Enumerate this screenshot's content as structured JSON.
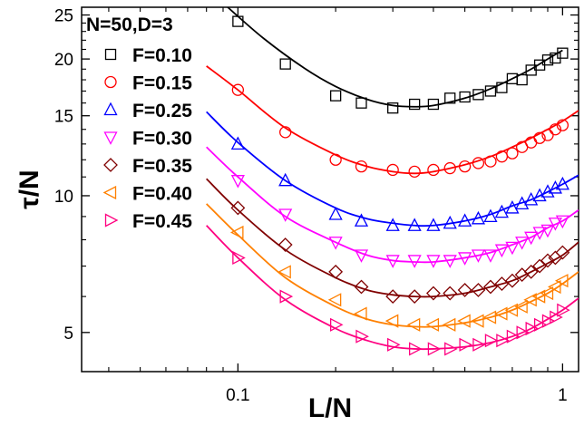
{
  "chart_data": {
    "type": "scatter",
    "title": "N=50,D=3",
    "xlabel": "L/N",
    "ylabel": "τ/N",
    "x_scale": "log",
    "y_scale": "log",
    "xlim": [
      0.033,
      1.12
    ],
    "ylim": [
      4.1,
      26.0
    ],
    "x_ticks": [
      0.1,
      1
    ],
    "x_tick_labels": [
      "0.1",
      "1"
    ],
    "y_ticks": [
      5,
      10,
      15,
      20,
      25
    ],
    "y_tick_labels": [
      "5",
      "10",
      "15",
      "20",
      "25"
    ],
    "legend_position": "top-left",
    "grid": false,
    "series": [
      {
        "name": "F=0.10",
        "marker": "square",
        "color": "#000000",
        "x": [
          0.1,
          0.14,
          0.2,
          0.24,
          0.3,
          0.35,
          0.4,
          0.45,
          0.5,
          0.55,
          0.6,
          0.65,
          0.7,
          0.75,
          0.8,
          0.85,
          0.9,
          0.95,
          1.0
        ],
        "y": [
          24.2,
          19.5,
          16.6,
          16.0,
          15.6,
          15.9,
          15.9,
          16.4,
          16.5,
          16.7,
          17.0,
          17.3,
          18.1,
          18.0,
          18.9,
          19.4,
          19.9,
          20.1,
          20.6
        ],
        "fit_x": [
          0.093,
          0.12,
          0.16,
          0.2,
          0.25,
          0.3,
          0.35,
          0.4,
          0.5,
          0.6,
          0.7,
          0.8,
          0.9,
          1.0
        ],
        "fit_y": [
          26.0,
          22.2,
          19.1,
          17.4,
          16.3,
          15.8,
          15.7,
          15.8,
          16.4,
          17.2,
          18.1,
          19.0,
          20.0,
          20.9
        ]
      },
      {
        "name": "F=0.15",
        "marker": "circle",
        "color": "#ff0000",
        "x": [
          0.1,
          0.14,
          0.2,
          0.24,
          0.3,
          0.35,
          0.4,
          0.45,
          0.5,
          0.55,
          0.6,
          0.65,
          0.7,
          0.75,
          0.8,
          0.85,
          0.9,
          0.95,
          1.0
        ],
        "y": [
          17.1,
          13.8,
          12.0,
          11.6,
          11.4,
          11.3,
          11.4,
          11.5,
          11.6,
          11.8,
          11.9,
          12.2,
          12.4,
          12.8,
          13.1,
          13.4,
          13.6,
          14.0,
          14.3
        ],
        "fit_x": [
          0.08,
          0.1,
          0.14,
          0.2,
          0.25,
          0.3,
          0.35,
          0.4,
          0.5,
          0.6,
          0.7,
          0.8,
          0.9,
          1.0,
          1.12
        ],
        "fit_y": [
          19.3,
          17.1,
          14.1,
          12.3,
          11.6,
          11.3,
          11.2,
          11.3,
          11.7,
          12.2,
          12.8,
          13.4,
          14.0,
          14.6,
          15.4
        ]
      },
      {
        "name": "F=0.25",
        "marker": "triangle-up",
        "color": "#0000ff",
        "x": [
          0.1,
          0.14,
          0.2,
          0.24,
          0.3,
          0.35,
          0.4,
          0.45,
          0.5,
          0.55,
          0.6,
          0.65,
          0.7,
          0.75,
          0.8,
          0.85,
          0.9,
          0.95,
          1.0
        ],
        "y": [
          13.0,
          10.8,
          9.1,
          8.8,
          8.6,
          8.6,
          8.6,
          8.7,
          8.8,
          8.9,
          9.0,
          9.2,
          9.4,
          9.6,
          9.8,
          10.0,
          10.2,
          10.4,
          10.6
        ],
        "fit_x": [
          0.08,
          0.1,
          0.14,
          0.2,
          0.25,
          0.3,
          0.35,
          0.4,
          0.5,
          0.6,
          0.7,
          0.8,
          0.9,
          1.0,
          1.12
        ],
        "fit_y": [
          15.3,
          13.1,
          10.8,
          9.4,
          8.9,
          8.7,
          8.6,
          8.6,
          8.8,
          9.1,
          9.5,
          9.8,
          10.2,
          10.6,
          11.1
        ]
      },
      {
        "name": "F=0.30",
        "marker": "triangle-down",
        "color": "#ff00ff",
        "x": [
          0.1,
          0.14,
          0.2,
          0.24,
          0.3,
          0.35,
          0.4,
          0.45,
          0.5,
          0.55,
          0.6,
          0.65,
          0.7,
          0.75,
          0.8,
          0.85,
          0.9,
          0.95,
          1.0
        ],
        "y": [
          10.8,
          9.1,
          7.9,
          7.4,
          7.2,
          7.2,
          7.2,
          7.2,
          7.3,
          7.4,
          7.4,
          7.6,
          7.7,
          7.9,
          8.1,
          8.3,
          8.4,
          8.7,
          8.8
        ],
        "fit_x": [
          0.08,
          0.1,
          0.14,
          0.2,
          0.25,
          0.3,
          0.35,
          0.4,
          0.5,
          0.6,
          0.7,
          0.8,
          0.9,
          1.0,
          1.12
        ],
        "fit_y": [
          12.8,
          11.0,
          9.0,
          7.9,
          7.4,
          7.2,
          7.15,
          7.15,
          7.3,
          7.5,
          7.8,
          8.1,
          8.5,
          8.8,
          9.3
        ]
      },
      {
        "name": "F=0.35",
        "marker": "diamond",
        "color": "#800000",
        "x": [
          0.1,
          0.14,
          0.2,
          0.24,
          0.3,
          0.35,
          0.4,
          0.45,
          0.5,
          0.55,
          0.6,
          0.65,
          0.7,
          0.75,
          0.8,
          0.85,
          0.9,
          0.95,
          1.0
        ],
        "y": [
          9.4,
          7.8,
          6.8,
          6.3,
          6.0,
          6.0,
          6.1,
          6.1,
          6.2,
          6.2,
          6.3,
          6.4,
          6.5,
          6.7,
          6.8,
          7.0,
          7.2,
          7.3,
          7.5
        ],
        "fit_x": [
          0.08,
          0.1,
          0.14,
          0.2,
          0.25,
          0.3,
          0.35,
          0.4,
          0.5,
          0.6,
          0.7,
          0.8,
          0.9,
          1.0,
          1.12
        ],
        "fit_y": [
          10.9,
          9.3,
          7.6,
          6.6,
          6.2,
          6.05,
          6.0,
          6.0,
          6.1,
          6.3,
          6.5,
          6.8,
          7.1,
          7.4,
          7.9
        ]
      },
      {
        "name": "F=0.40",
        "marker": "triangle-left",
        "color": "#ff8000",
        "x": [
          0.1,
          0.14,
          0.2,
          0.24,
          0.3,
          0.35,
          0.4,
          0.45,
          0.5,
          0.55,
          0.6,
          0.65,
          0.7,
          0.75,
          0.8,
          0.85,
          0.9,
          0.95,
          1.0
        ],
        "y": [
          8.3,
          6.8,
          5.9,
          5.5,
          5.3,
          5.2,
          5.2,
          5.2,
          5.3,
          5.3,
          5.4,
          5.5,
          5.6,
          5.7,
          5.9,
          6.0,
          6.1,
          6.3,
          6.5
        ],
        "fit_x": [
          0.08,
          0.1,
          0.14,
          0.2,
          0.25,
          0.3,
          0.35,
          0.4,
          0.5,
          0.6,
          0.7,
          0.8,
          0.9,
          1.0,
          1.12
        ],
        "fit_y": [
          9.6,
          8.2,
          6.6,
          5.7,
          5.35,
          5.2,
          5.15,
          5.15,
          5.25,
          5.4,
          5.6,
          5.85,
          6.1,
          6.4,
          6.8
        ]
      },
      {
        "name": "F=0.45",
        "marker": "triangle-right",
        "color": "#ff0080",
        "x": [
          0.1,
          0.14,
          0.2,
          0.24,
          0.3,
          0.35,
          0.4,
          0.45,
          0.5,
          0.55,
          0.6,
          0.65,
          0.7,
          0.75,
          0.8,
          0.85,
          0.9,
          0.95,
          1.0
        ],
        "y": [
          7.3,
          6.0,
          5.2,
          4.9,
          4.7,
          4.6,
          4.6,
          4.6,
          4.7,
          4.7,
          4.8,
          4.8,
          4.9,
          5.0,
          5.1,
          5.2,
          5.3,
          5.4,
          5.6
        ],
        "fit_x": [
          0.08,
          0.1,
          0.14,
          0.2,
          0.25,
          0.3,
          0.35,
          0.4,
          0.5,
          0.6,
          0.7,
          0.8,
          0.9,
          1.0,
          1.12
        ],
        "fit_y": [
          8.6,
          7.3,
          5.9,
          5.1,
          4.8,
          4.65,
          4.6,
          4.6,
          4.65,
          4.75,
          4.9,
          5.1,
          5.35,
          5.6,
          5.95
        ]
      }
    ]
  }
}
